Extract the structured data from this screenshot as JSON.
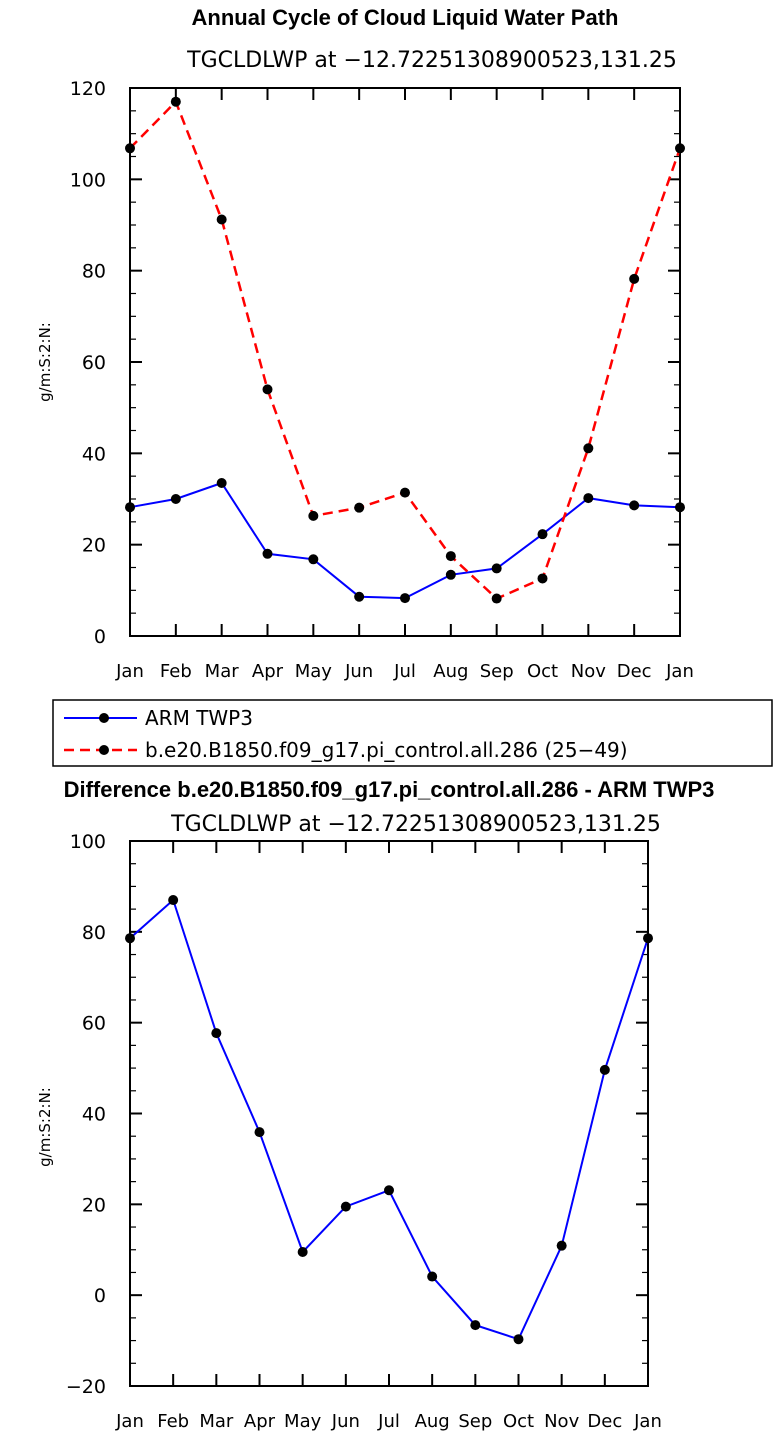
{
  "chart_data": [
    {
      "type": "line",
      "title": "Annual Cycle of Cloud Liquid Water Path",
      "subtitle": "TGCLDLWP  at  −12.72251308900523,131.25",
      "ylabel": "g/m:S:2:N:",
      "xlabel": "",
      "ylim": [
        0,
        120
      ],
      "yticks": [
        0,
        20,
        40,
        60,
        80,
        100,
        120
      ],
      "categories": [
        "Jan",
        "Feb",
        "Mar",
        "Apr",
        "May",
        "Jun",
        "Jul",
        "Aug",
        "Sep",
        "Oct",
        "Nov",
        "Dec",
        "Jan"
      ],
      "grid": false,
      "legend_placement": "bottom",
      "series": [
        {
          "name": "ARM TWP3",
          "color": "#0000ff",
          "dash": "solid",
          "values": [
            28.2,
            30.0,
            33.5,
            18.0,
            16.8,
            8.6,
            8.3,
            13.4,
            14.8,
            22.3,
            30.2,
            28.6,
            28.2
          ]
        },
        {
          "name": "b.e20.B1850.f09_g17.pi_control.all.286 (25−49)",
          "color": "#ff0000",
          "dash": "dashed",
          "values": [
            106.8,
            117.0,
            91.2,
            54.0,
            26.3,
            28.1,
            31.4,
            17.5,
            8.2,
            12.6,
            41.1,
            78.2,
            106.8
          ]
        }
      ]
    },
    {
      "type": "line",
      "title": "Difference b.e20.B1850.f09_g17.pi_control.all.286 - ARM TWP3",
      "subtitle": "TGCLDLWP  at  −12.72251308900523,131.25",
      "ylabel": "g/m:S:2:N:",
      "xlabel": "",
      "ylim": [
        -20,
        100
      ],
      "yticks": [
        -20,
        0,
        20,
        40,
        60,
        80,
        100
      ],
      "categories": [
        "Jan",
        "Feb",
        "Mar",
        "Apr",
        "May",
        "Jun",
        "Jul",
        "Aug",
        "Sep",
        "Oct",
        "Nov",
        "Dec",
        "Jan"
      ],
      "grid": false,
      "series": [
        {
          "color": "#0000ff",
          "dash": "solid",
          "values": [
            78.6,
            87.0,
            57.7,
            35.9,
            9.5,
            19.5,
            23.1,
            4.1,
            -6.6,
            -9.7,
            10.9,
            49.6,
            78.6
          ]
        }
      ]
    }
  ]
}
